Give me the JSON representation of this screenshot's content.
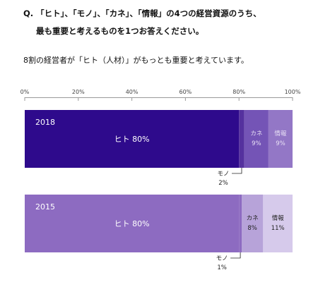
{
  "question": {
    "line1": "Q. 「ヒト」、「モノ」、「カネ」、「情報」の4つの経営資源のうち、",
    "line2": "最も重要と考えるものを1つお答えください。"
  },
  "lead": "8割の経営者が「ヒト（人材）」がもっとも重要と考えています。",
  "colors": {
    "y2018": {
      "hito": "#2e0a8c",
      "mono": "#55319e",
      "kane": "#7454b6",
      "joho": "#9377c6"
    },
    "y2015": {
      "hito": "#8d6bc1",
      "mono": "#8d6bc1",
      "kane": "#b7a3d9",
      "joho": "#d6caeb"
    },
    "axis": "#9a9a9a"
  },
  "chart_data": {
    "type": "bar",
    "orientation": "horizontal",
    "stacked": true,
    "xlim": [
      0,
      100
    ],
    "x_ticks": [
      "0%",
      "20%",
      "40%",
      "60%",
      "80%",
      "100%"
    ],
    "grid": true,
    "categories": [
      "2018",
      "2015"
    ],
    "series": [
      {
        "name": "ヒト",
        "values": [
          80,
          80
        ],
        "labels": [
          "ヒト 80%",
          "ヒト 80%"
        ]
      },
      {
        "name": "モノ",
        "values": [
          2,
          1
        ],
        "labels": [
          "2%",
          "1%"
        ]
      },
      {
        "name": "カネ",
        "values": [
          9,
          8
        ],
        "labels": [
          "9%",
          "8%"
        ]
      },
      {
        "name": "情報",
        "values": [
          9,
          11
        ],
        "labels": [
          "9%",
          "11%"
        ]
      }
    ]
  }
}
